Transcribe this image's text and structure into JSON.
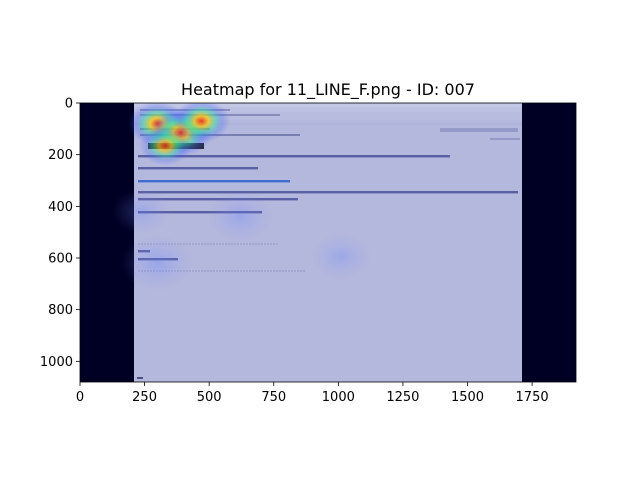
{
  "chart_data": {
    "type": "heatmap",
    "title": "Heatmap for 11_LINE_F.png - ID: 007",
    "xlabel": "",
    "ylabel": "",
    "xlim": [
      0,
      1920
    ],
    "ylim": [
      1080,
      0
    ],
    "x_ticks": [
      0,
      250,
      500,
      750,
      1000,
      1250,
      1500,
      1750
    ],
    "y_ticks": [
      0,
      200,
      400,
      600,
      800,
      1000
    ],
    "grid": false,
    "background_image": {
      "x_range": [
        210,
        1710
      ],
      "y_range": [
        0,
        1080
      ],
      "base_color": "#b4b8dc",
      "side_color": "#000024"
    },
    "hotspots": [
      {
        "x": 300,
        "y": 80,
        "intensity": 0.85
      },
      {
        "x": 390,
        "y": 115,
        "intensity": 1.0
      },
      {
        "x": 470,
        "y": 70,
        "intensity": 0.8
      },
      {
        "x": 330,
        "y": 165,
        "intensity": 0.6
      },
      {
        "x": 620,
        "y": 440,
        "intensity": 0.45
      },
      {
        "x": 300,
        "y": 620,
        "intensity": 0.55
      },
      {
        "x": 1010,
        "y": 595,
        "intensity": 0.35
      },
      {
        "x": 240,
        "y": 420,
        "intensity": 0.3
      }
    ],
    "colors": {
      "hot": "#ff2000",
      "warm": "#ffd000",
      "mid": "#30e0a0",
      "cool": "#4060ff"
    }
  }
}
